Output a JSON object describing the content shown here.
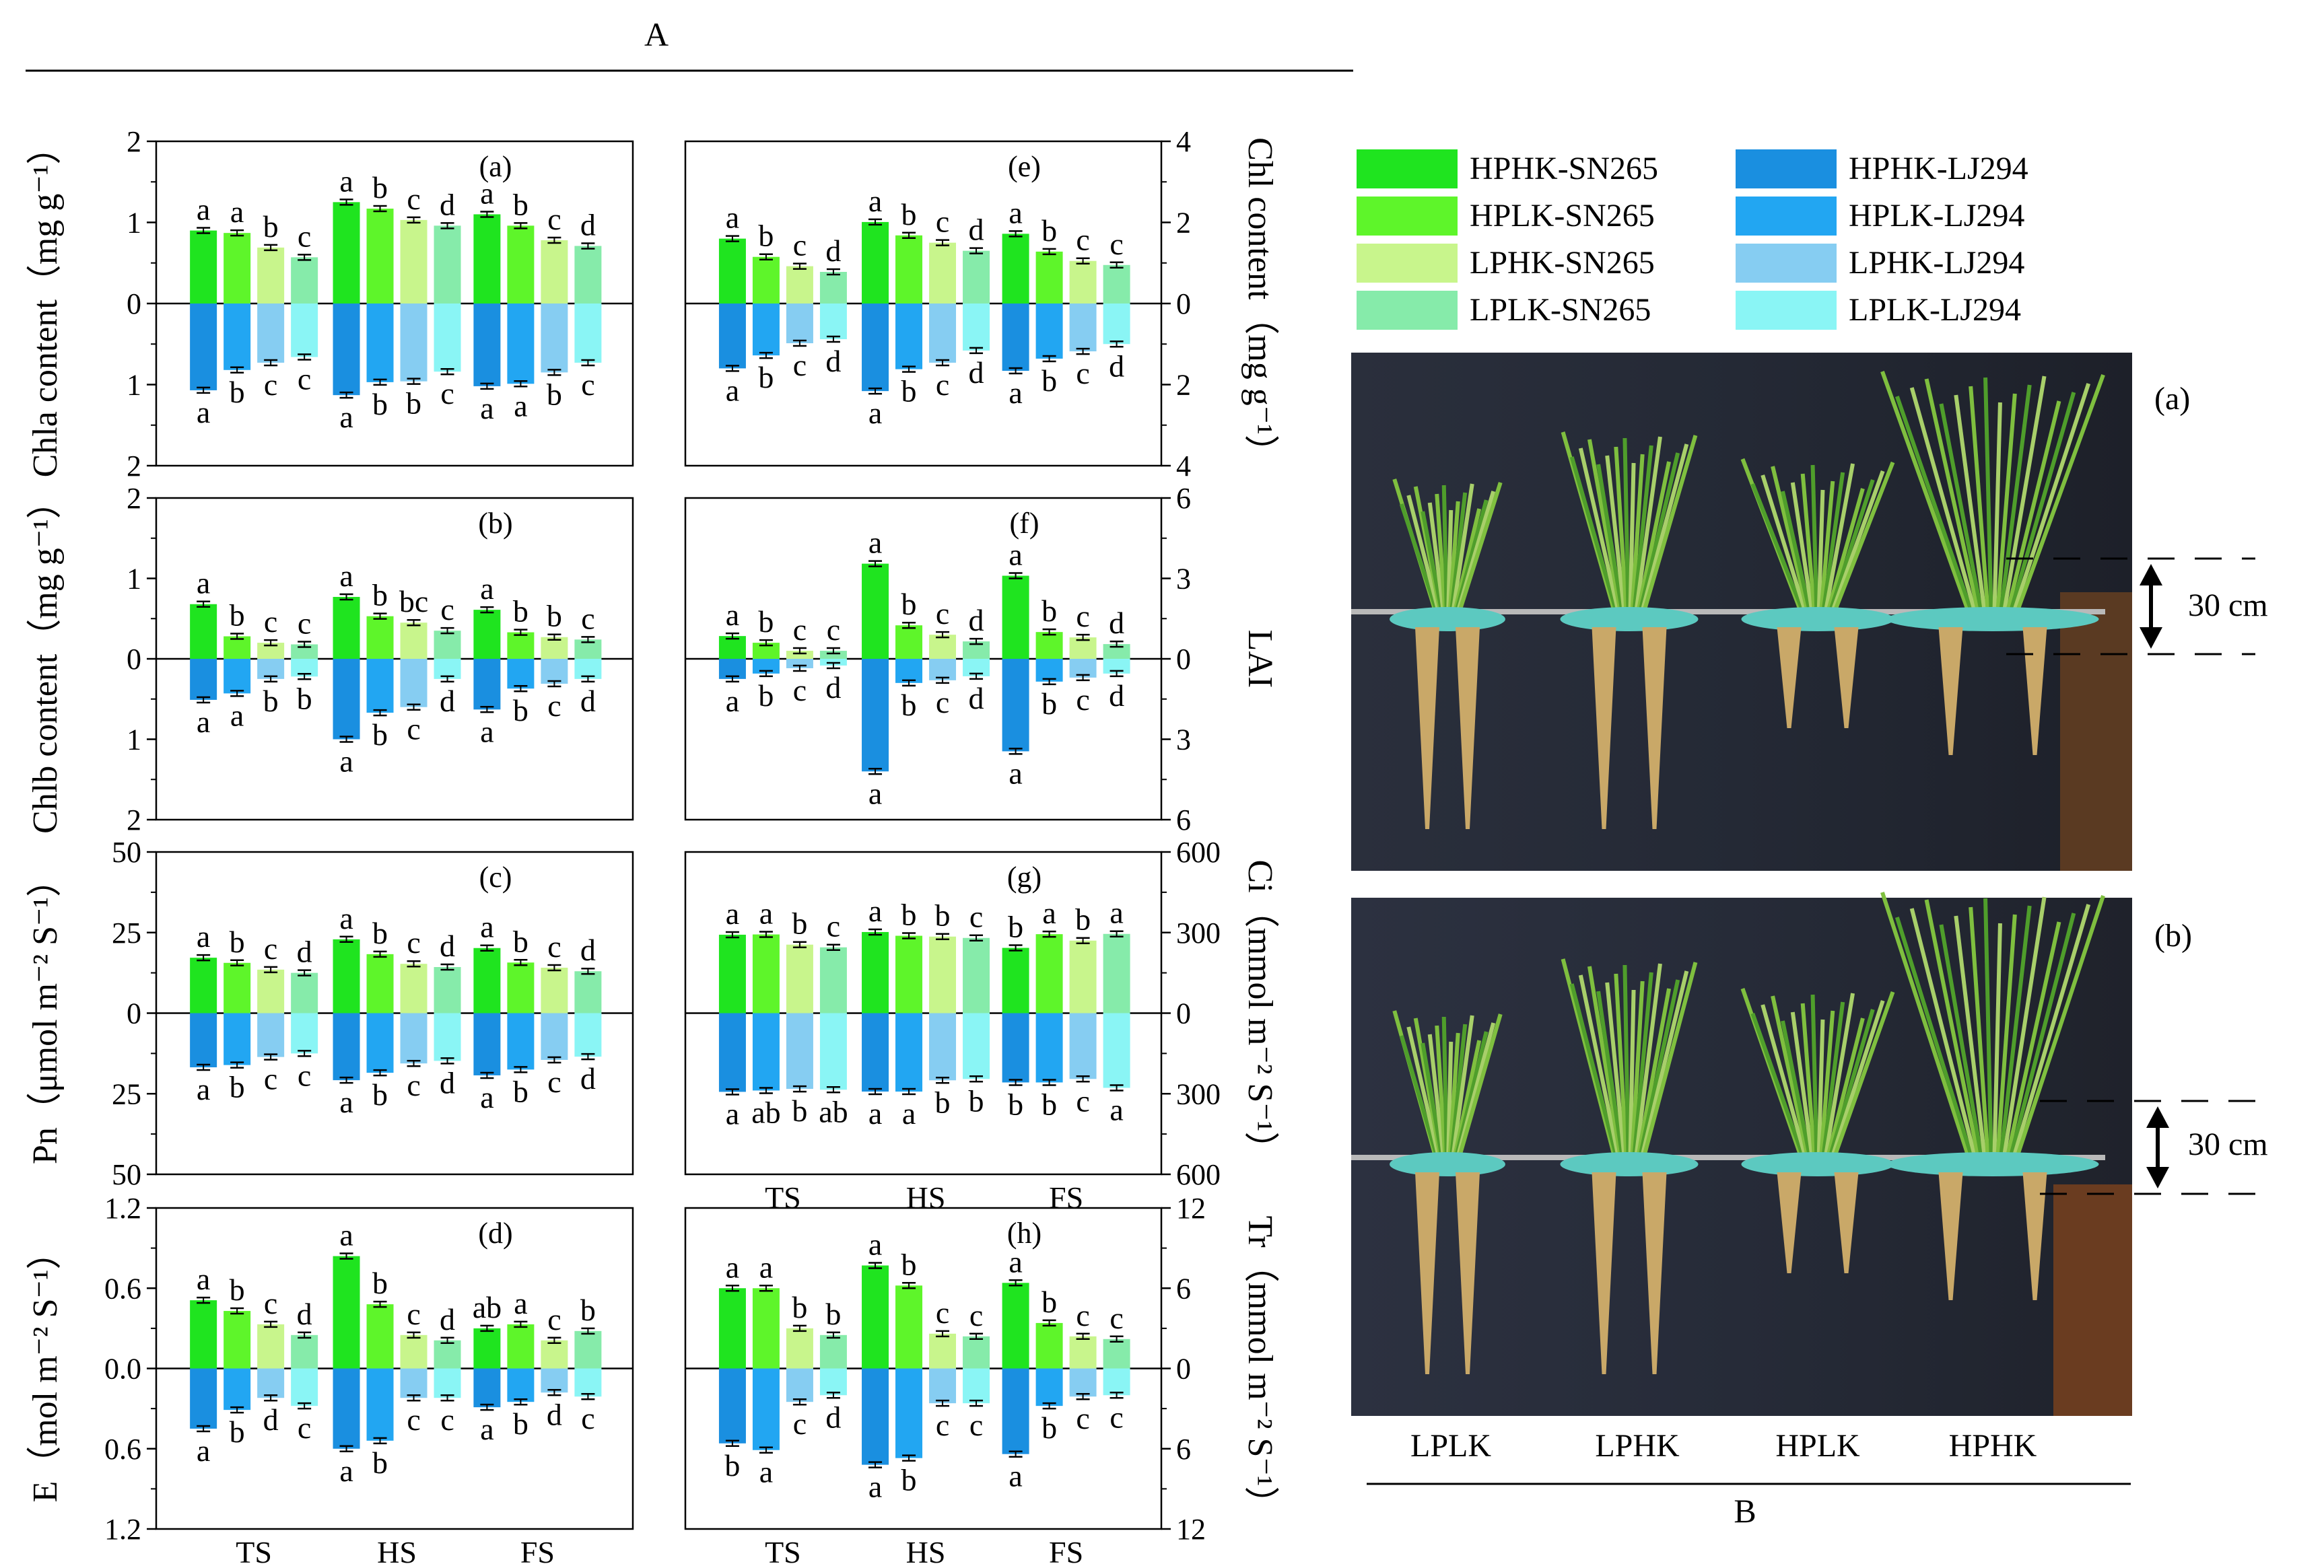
{
  "figure": {
    "label_A": "A",
    "label_B": "B",
    "legend": [
      {
        "name": "HPHK-SN265",
        "color": "#1fe41f"
      },
      {
        "name": "HPLK-SN265",
        "color": "#5ef52a"
      },
      {
        "name": "LPHK-SN265",
        "color": "#c8f58c"
      },
      {
        "name": "LPLK-SN265",
        "color": "#86ebaa"
      },
      {
        "name": "HPHK-LJ294",
        "color": "#1a8fe0"
      },
      {
        "name": "HPLK-LJ294",
        "color": "#22a6f2"
      },
      {
        "name": "LPHK-LJ294",
        "color": "#86cdf2"
      },
      {
        "name": "LPLK-LJ294",
        "color": "#8af5f5"
      }
    ],
    "photos": {
      "top_label": "(a)",
      "bottom_label": "(b)",
      "scale_text": "30 cm",
      "treatments": [
        "LPLK",
        "LPHK",
        "HPLK",
        "HPHK"
      ]
    }
  },
  "chart_data": [
    {
      "id": "a",
      "type": "bar",
      "panel_label": "(a)",
      "ylabel": "Chla content（mg g⁻¹）",
      "ylabel_parts": [
        "Chla content（mg g",
        "-1",
        "）"
      ],
      "axis_side": "left",
      "ylim_top": [
        0,
        2
      ],
      "ylim_bottom": [
        0,
        2
      ],
      "tick_labels": [
        "2",
        "1",
        "0",
        "1",
        "2"
      ],
      "categories": [
        "TS",
        "HS",
        "FS"
      ],
      "show_xticks": false,
      "top": {
        "values": [
          [
            0.9,
            0.87,
            0.69,
            0.57
          ],
          [
            1.25,
            1.17,
            1.03,
            0.96
          ],
          [
            1.1,
            0.96,
            0.78,
            0.71
          ]
        ],
        "letters": [
          [
            "a",
            "a",
            "b",
            "c"
          ],
          [
            "a",
            "b",
            "c",
            "d"
          ],
          [
            "a",
            "b",
            "c",
            "d"
          ]
        ]
      },
      "bottom": {
        "values": [
          [
            1.07,
            0.82,
            0.73,
            0.66
          ],
          [
            1.13,
            0.97,
            0.96,
            0.84
          ],
          [
            1.02,
            0.99,
            0.85,
            0.73
          ]
        ],
        "letters": [
          [
            "a",
            "b",
            "c",
            "c"
          ],
          [
            "a",
            "b",
            "b",
            "c"
          ],
          [
            "a",
            "a",
            "b",
            "c"
          ]
        ]
      }
    },
    {
      "id": "b",
      "type": "bar",
      "panel_label": "(b)",
      "ylabel": "Chlb content（mg g⁻¹）",
      "ylabel_parts": [
        "Chlb content（mg g",
        "-1",
        "）"
      ],
      "axis_side": "left",
      "ylim_top": [
        0,
        2
      ],
      "ylim_bottom": [
        0,
        2
      ],
      "tick_labels": [
        "2",
        "1",
        "0",
        "1",
        "2"
      ],
      "categories": [
        "TS",
        "HS",
        "FS"
      ],
      "show_xticks": false,
      "top": {
        "values": [
          [
            0.68,
            0.28,
            0.2,
            0.18
          ],
          [
            0.77,
            0.53,
            0.45,
            0.35
          ],
          [
            0.61,
            0.33,
            0.27,
            0.24
          ]
        ],
        "letters": [
          [
            "a",
            "b",
            "c",
            "c"
          ],
          [
            "a",
            "b",
            "bc",
            "c"
          ],
          [
            "a",
            "b",
            "b",
            "c"
          ]
        ]
      },
      "bottom": {
        "values": [
          [
            0.51,
            0.43,
            0.25,
            0.22
          ],
          [
            1.0,
            0.67,
            0.6,
            0.25
          ],
          [
            0.63,
            0.37,
            0.31,
            0.25
          ]
        ],
        "letters": [
          [
            "a",
            "a",
            "b",
            "b"
          ],
          [
            "a",
            "b",
            "c",
            "d"
          ],
          [
            "a",
            "b",
            "c",
            "d"
          ]
        ]
      }
    },
    {
      "id": "c",
      "type": "bar",
      "panel_label": "(c)",
      "ylabel": "Pn（μmol m⁻² S⁻¹）",
      "axis_side": "left",
      "ylim_top": [
        0,
        50
      ],
      "ylim_bottom": [
        0,
        50
      ],
      "tick_labels": [
        "50",
        "25",
        "0",
        "25",
        "50"
      ],
      "categories": [
        "TS",
        "HS",
        "FS"
      ],
      "show_xticks": false,
      "top": {
        "values": [
          [
            17.2,
            15.6,
            13.5,
            12.5
          ],
          [
            22.9,
            18.3,
            15.3,
            14.3
          ],
          [
            20.2,
            15.7,
            14.1,
            13.0
          ]
        ],
        "letters": [
          [
            "a",
            "b",
            "c",
            "d"
          ],
          [
            "a",
            "b",
            "c",
            "d"
          ],
          [
            "a",
            "b",
            "c",
            "d"
          ]
        ]
      },
      "bottom": {
        "values": [
          [
            16.8,
            16.1,
            13.6,
            12.5
          ],
          [
            20.8,
            18.5,
            15.6,
            14.8
          ],
          [
            19.3,
            17.5,
            14.5,
            13.5
          ]
        ],
        "letters": [
          [
            "a",
            "b",
            "c",
            "c"
          ],
          [
            "a",
            "b",
            "c",
            "d"
          ],
          [
            "a",
            "b",
            "c",
            "d"
          ]
        ]
      }
    },
    {
      "id": "d",
      "type": "bar",
      "panel_label": "(d)",
      "ylabel": "E（mol m⁻² S⁻¹）",
      "axis_side": "left",
      "ylim_top": [
        0,
        1.2
      ],
      "ylim_bottom": [
        0,
        1.2
      ],
      "tick_labels": [
        "1.2",
        "0.6",
        "0.0",
        "0.6",
        "1.2"
      ],
      "categories": [
        "TS",
        "HS",
        "FS"
      ],
      "show_xticks": true,
      "top": {
        "values": [
          [
            0.51,
            0.43,
            0.33,
            0.25
          ],
          [
            0.84,
            0.48,
            0.25,
            0.21
          ],
          [
            0.3,
            0.33,
            0.21,
            0.28
          ]
        ],
        "letters": [
          [
            "a",
            "b",
            "c",
            "d"
          ],
          [
            "a",
            "b",
            "c",
            "d"
          ],
          [
            "ab",
            "a",
            "c",
            "b"
          ]
        ]
      },
      "bottom": {
        "values": [
          [
            0.45,
            0.31,
            0.22,
            0.28
          ],
          [
            0.6,
            0.54,
            0.22,
            0.22
          ],
          [
            0.29,
            0.25,
            0.18,
            0.21
          ]
        ],
        "letters": [
          [
            "a",
            "b",
            "d",
            "c"
          ],
          [
            "a",
            "b",
            "c",
            "c"
          ],
          [
            "a",
            "b",
            "d",
            "c"
          ]
        ]
      }
    },
    {
      "id": "e",
      "type": "bar",
      "panel_label": "(e)",
      "ylabel": "Chl content（mg g⁻¹）",
      "ylabel_parts": [
        "Chl content（mg g",
        "-1",
        "）"
      ],
      "axis_side": "right",
      "ylim_top": [
        0,
        4
      ],
      "ylim_bottom": [
        0,
        4
      ],
      "tick_labels": [
        "4",
        "2",
        "0",
        "2",
        "4"
      ],
      "categories": [
        "TS",
        "HS",
        "FS"
      ],
      "show_xticks": false,
      "top": {
        "values": [
          [
            1.6,
            1.15,
            0.92,
            0.78
          ],
          [
            2.01,
            1.68,
            1.5,
            1.3
          ],
          [
            1.72,
            1.28,
            1.05,
            0.95
          ]
        ],
        "letters": [
          [
            "a",
            "b",
            "c",
            "d"
          ],
          [
            "a",
            "b",
            "c",
            "d"
          ],
          [
            "a",
            "b",
            "c",
            "c"
          ]
        ]
      },
      "bottom": {
        "values": [
          [
            1.6,
            1.28,
            0.98,
            0.88
          ],
          [
            2.16,
            1.62,
            1.46,
            1.16
          ],
          [
            1.66,
            1.36,
            1.18,
            1.0
          ]
        ],
        "letters": [
          [
            "a",
            "b",
            "c",
            "d"
          ],
          [
            "a",
            "b",
            "c",
            "d"
          ],
          [
            "a",
            "b",
            "c",
            "d"
          ]
        ]
      }
    },
    {
      "id": "f",
      "type": "bar",
      "panel_label": "(f)",
      "ylabel": "LAI",
      "axis_side": "right",
      "ylim_top": [
        0,
        6
      ],
      "ylim_bottom": [
        0,
        6
      ],
      "tick_labels": [
        "6",
        "3",
        "0",
        "3",
        "6"
      ],
      "categories": [
        "TS",
        "HS",
        "FS"
      ],
      "show_xticks": false,
      "top": {
        "values": [
          [
            0.85,
            0.6,
            0.3,
            0.3
          ],
          [
            3.55,
            1.25,
            0.9,
            0.65
          ],
          [
            3.1,
            1.0,
            0.8,
            0.55
          ]
        ],
        "letters": [
          [
            "a",
            "b",
            "c",
            "c"
          ],
          [
            "a",
            "b",
            "c",
            "d"
          ],
          [
            "a",
            "b",
            "c",
            "d"
          ]
        ]
      },
      "bottom": {
        "values": [
          [
            0.75,
            0.55,
            0.35,
            0.25
          ],
          [
            4.2,
            0.9,
            0.8,
            0.65
          ],
          [
            3.45,
            0.85,
            0.7,
            0.55
          ]
        ],
        "letters": [
          [
            "a",
            "b",
            "c",
            "d"
          ],
          [
            "a",
            "b",
            "c",
            "d"
          ],
          [
            "a",
            "b",
            "c",
            "d"
          ]
        ]
      }
    },
    {
      "id": "g",
      "type": "bar",
      "panel_label": "(g)",
      "ylabel": "Ci（mmol m⁻² S⁻¹）",
      "axis_side": "right",
      "ylim_top": [
        0,
        600
      ],
      "ylim_bottom": [
        0,
        600
      ],
      "tick_labels": [
        "600",
        "300",
        "0",
        "300",
        "600"
      ],
      "categories": [
        "TS",
        "HS",
        "FS"
      ],
      "show_xticks": true,
      "top": {
        "values": [
          [
            292,
            293,
            255,
            245
          ],
          [
            302,
            288,
            285,
            280
          ],
          [
            243,
            294,
            270,
            295
          ]
        ],
        "letters": [
          [
            "a",
            "a",
            "b",
            "c"
          ],
          [
            "a",
            "b",
            "b",
            "c"
          ],
          [
            "b",
            "a",
            "b",
            "a"
          ]
        ]
      },
      "bottom": {
        "values": [
          [
            293,
            288,
            282,
            285
          ],
          [
            292,
            292,
            250,
            245
          ],
          [
            258,
            258,
            245,
            278
          ]
        ],
        "letters": [
          [
            "a",
            "ab",
            "b",
            "ab"
          ],
          [
            "a",
            "a",
            "b",
            "b"
          ],
          [
            "b",
            "b",
            "c",
            "a"
          ]
        ]
      }
    },
    {
      "id": "h",
      "type": "bar",
      "panel_label": "(h)",
      "ylabel": "Tr（mmol m⁻² S⁻¹）",
      "axis_side": "right",
      "ylim_top": [
        0,
        12
      ],
      "ylim_bottom": [
        0,
        12
      ],
      "tick_labels": [
        "12",
        "6",
        "0",
        "6",
        "12"
      ],
      "categories": [
        "TS",
        "HS",
        "FS"
      ],
      "show_xticks": true,
      "top": {
        "values": [
          [
            6.0,
            6.0,
            3.0,
            2.5
          ],
          [
            7.7,
            6.2,
            2.6,
            2.4
          ],
          [
            6.4,
            3.4,
            2.4,
            2.2
          ]
        ],
        "letters": [
          [
            "a",
            "a",
            "b",
            "b"
          ],
          [
            "a",
            "b",
            "c",
            "c"
          ],
          [
            "a",
            "b",
            "c",
            "c"
          ]
        ]
      },
      "bottom": {
        "values": [
          [
            5.6,
            6.1,
            2.5,
            2.0
          ],
          [
            7.2,
            6.7,
            2.6,
            2.6
          ],
          [
            6.4,
            2.8,
            2.1,
            2.0
          ]
        ],
        "letters": [
          [
            "b",
            "a",
            "c",
            "d"
          ],
          [
            "a",
            "b",
            "c",
            "c"
          ],
          [
            "a",
            "b",
            "c",
            "c"
          ]
        ]
      }
    }
  ]
}
